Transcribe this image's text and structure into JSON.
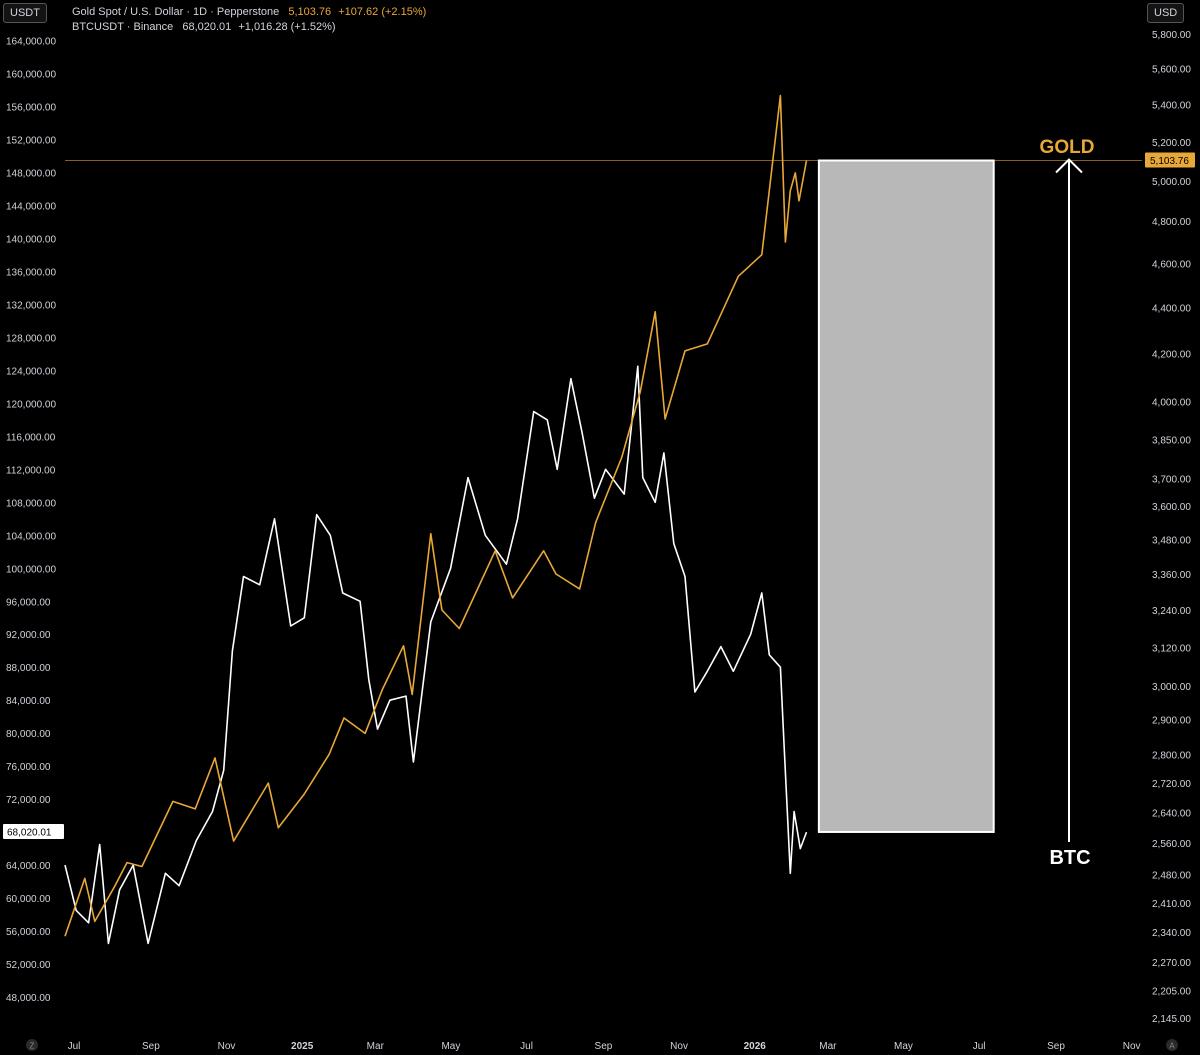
{
  "header": {
    "gold_name": "Gold Spot / U.S. Dollar · 1D · Pepperstone",
    "gold_price": "5,103.76",
    "gold_change": "+107.62 (+2.15%)",
    "btc_name": "BTCUSDT · Binance",
    "btc_price": "68,020.01",
    "btc_change": "+1,016.28 (+1.52%)"
  },
  "units": {
    "left": "USDT",
    "right": "USD"
  },
  "footer": {
    "left_icon_label": "Z",
    "right_icon_label": "A"
  },
  "colors": {
    "gold": "#e8a838",
    "btc": "#ffffff",
    "box": "#b8b8b8",
    "background": "#000000",
    "axis_text": "#d1d4dc"
  },
  "chart_data": {
    "type": "line",
    "title": "Gold Spot / U.S. Dollar vs BTCUSDT",
    "x_labels": [
      "Jul",
      "Sep",
      "Nov",
      "2025",
      "Mar",
      "May",
      "Jul",
      "Sep",
      "Nov",
      "2026",
      "Mar",
      "May",
      "Jul",
      "Sep",
      "Nov"
    ],
    "x_label_bold": [
      "2025",
      "2026"
    ],
    "x_range": [
      "2024-07-01",
      "2026-11-15"
    ],
    "left_axis": {
      "unit": "USDT",
      "ylim": [
        44000,
        166500
      ],
      "ticks": [
        "48,000.00",
        "52,000.00",
        "56,000.00",
        "60,000.00",
        "64,000.00",
        "68,000.00",
        "72,000.00",
        "76,000.00",
        "80,000.00",
        "84,000.00",
        "88,000.00",
        "92,000.00",
        "96,000.00",
        "100,000.00",
        "104,000.00",
        "108,000.00",
        "112,000.00",
        "116,000.00",
        "120,000.00",
        "124,000.00",
        "128,000.00",
        "132,000.00",
        "136,000.00",
        "140,000.00",
        "144,000.00",
        "148,000.00",
        "152,000.00",
        "156,000.00",
        "160,000.00",
        "164,000.00"
      ],
      "last_value_label": "68,020.01"
    },
    "right_axis": {
      "unit": "USD",
      "scale": "log",
      "ticks": [
        "2,145.00",
        "2,205.00",
        "2,270.00",
        "2,340.00",
        "2,410.00",
        "2,480.00",
        "2,560.00",
        "2,640.00",
        "2,720.00",
        "2,800.00",
        "2,900.00",
        "3,000.00",
        "3,120.00",
        "3,240.00",
        "3,360.00",
        "3,480.00",
        "3,600.00",
        "3,700.00",
        "3,850.00",
        "4,000.00",
        "4,200.00",
        "4,400.00",
        "4,600.00",
        "4,800.00",
        "5,000.00",
        "5,200.00",
        "5,400.00",
        "5,600.00",
        "5,800.00"
      ],
      "last_value_label": "5,103.76"
    },
    "series": [
      {
        "name": "BTCUSDT",
        "axis": "left",
        "color": "#ffffff",
        "points": [
          [
            "2024-07-01",
            64000
          ],
          [
            "2024-07-10",
            58500
          ],
          [
            "2024-07-20",
            57000
          ],
          [
            "2024-07-29",
            66500
          ],
          [
            "2024-08-05",
            54500
          ],
          [
            "2024-08-14",
            61000
          ],
          [
            "2024-08-25",
            64000
          ],
          [
            "2024-09-06",
            54500
          ],
          [
            "2024-09-20",
            63000
          ],
          [
            "2024-10-01",
            61500
          ],
          [
            "2024-10-15",
            67000
          ],
          [
            "2024-10-28",
            70500
          ],
          [
            "2024-11-06",
            75500
          ],
          [
            "2024-11-13",
            90000
          ],
          [
            "2024-11-22",
            99000
          ],
          [
            "2024-12-05",
            98000
          ],
          [
            "2024-12-17",
            106000
          ],
          [
            "2024-12-30",
            93000
          ],
          [
            "2025-01-10",
            94000
          ],
          [
            "2025-01-20",
            106500
          ],
          [
            "2025-01-31",
            104000
          ],
          [
            "2025-02-10",
            97000
          ],
          [
            "2025-02-24",
            96000
          ],
          [
            "2025-03-03",
            86500
          ],
          [
            "2025-03-10",
            80500
          ],
          [
            "2025-03-20",
            84000
          ],
          [
            "2025-04-02",
            84500
          ],
          [
            "2025-04-08",
            76500
          ],
          [
            "2025-04-22",
            93500
          ],
          [
            "2025-05-08",
            100000
          ],
          [
            "2025-05-22",
            111000
          ],
          [
            "2025-06-05",
            104000
          ],
          [
            "2025-06-22",
            100500
          ],
          [
            "2025-07-01",
            106000
          ],
          [
            "2025-07-14",
            119000
          ],
          [
            "2025-07-25",
            118000
          ],
          [
            "2025-08-02",
            112000
          ],
          [
            "2025-08-13",
            123000
          ],
          [
            "2025-08-22",
            116500
          ],
          [
            "2025-09-01",
            108500
          ],
          [
            "2025-09-10",
            112000
          ],
          [
            "2025-09-25",
            109000
          ],
          [
            "2025-10-06",
            124500
          ],
          [
            "2025-10-10",
            111000
          ],
          [
            "2025-10-20",
            108000
          ],
          [
            "2025-10-27",
            114000
          ],
          [
            "2025-11-04",
            103000
          ],
          [
            "2025-11-13",
            99000
          ],
          [
            "2025-11-21",
            85000
          ],
          [
            "2025-12-01",
            87500
          ],
          [
            "2025-12-12",
            90500
          ],
          [
            "2025-12-22",
            87500
          ],
          [
            "2026-01-05",
            92000
          ],
          [
            "2026-01-14",
            97000
          ],
          [
            "2026-01-20",
            89500
          ],
          [
            "2026-01-29",
            88000
          ],
          [
            "2026-02-01",
            78500
          ],
          [
            "2026-02-06",
            63000
          ],
          [
            "2026-02-09",
            70500
          ],
          [
            "2026-02-14",
            66000
          ],
          [
            "2026-02-19",
            68000
          ]
        ]
      },
      {
        "name": "Gold Spot / U.S. Dollar",
        "axis": "right",
        "color": "#e8a838",
        "points": [
          [
            "2024-07-01",
            2330
          ],
          [
            "2024-07-17",
            2470
          ],
          [
            "2024-07-25",
            2365
          ],
          [
            "2024-08-10",
            2450
          ],
          [
            "2024-08-20",
            2510
          ],
          [
            "2024-09-01",
            2500
          ],
          [
            "2024-09-26",
            2670
          ],
          [
            "2024-10-14",
            2650
          ],
          [
            "2024-10-30",
            2790
          ],
          [
            "2024-11-14",
            2565
          ],
          [
            "2024-11-25",
            2625
          ],
          [
            "2024-12-12",
            2720
          ],
          [
            "2024-12-20",
            2600
          ],
          [
            "2025-01-10",
            2690
          ],
          [
            "2025-01-30",
            2800
          ],
          [
            "2025-02-11",
            2905
          ],
          [
            "2025-02-28",
            2860
          ],
          [
            "2025-03-14",
            2990
          ],
          [
            "2025-03-31",
            3125
          ],
          [
            "2025-04-07",
            2975
          ],
          [
            "2025-04-22",
            3500
          ],
          [
            "2025-05-01",
            3240
          ],
          [
            "2025-05-15",
            3180
          ],
          [
            "2025-06-13",
            3440
          ],
          [
            "2025-06-27",
            3280
          ],
          [
            "2025-07-22",
            3440
          ],
          [
            "2025-08-01",
            3360
          ],
          [
            "2025-08-20",
            3310
          ],
          [
            "2025-09-02",
            3540
          ],
          [
            "2025-09-23",
            3780
          ],
          [
            "2025-10-08",
            4040
          ],
          [
            "2025-10-20",
            4380
          ],
          [
            "2025-10-28",
            3930
          ],
          [
            "2025-11-13",
            4210
          ],
          [
            "2025-12-01",
            4240
          ],
          [
            "2025-12-26",
            4540
          ],
          [
            "2026-01-14",
            4640
          ],
          [
            "2026-01-29",
            5450
          ],
          [
            "2026-02-02",
            4700
          ],
          [
            "2026-02-06",
            4950
          ],
          [
            "2026-02-10",
            5040
          ],
          [
            "2026-02-13",
            4900
          ],
          [
            "2026-02-19",
            5103.76
          ]
        ]
      }
    ],
    "annotations": [
      {
        "label": "GOLD",
        "color": "#e8a838",
        "type": "arrow-up"
      },
      {
        "label": "BTC",
        "color": "#ffffff"
      },
      {
        "type": "projection-box",
        "color": "#b8b8b8",
        "x_range": [
          "2026-03-01",
          "2026-07-20"
        ],
        "y_range_left": [
          68020.01,
          149600
        ]
      }
    ]
  }
}
